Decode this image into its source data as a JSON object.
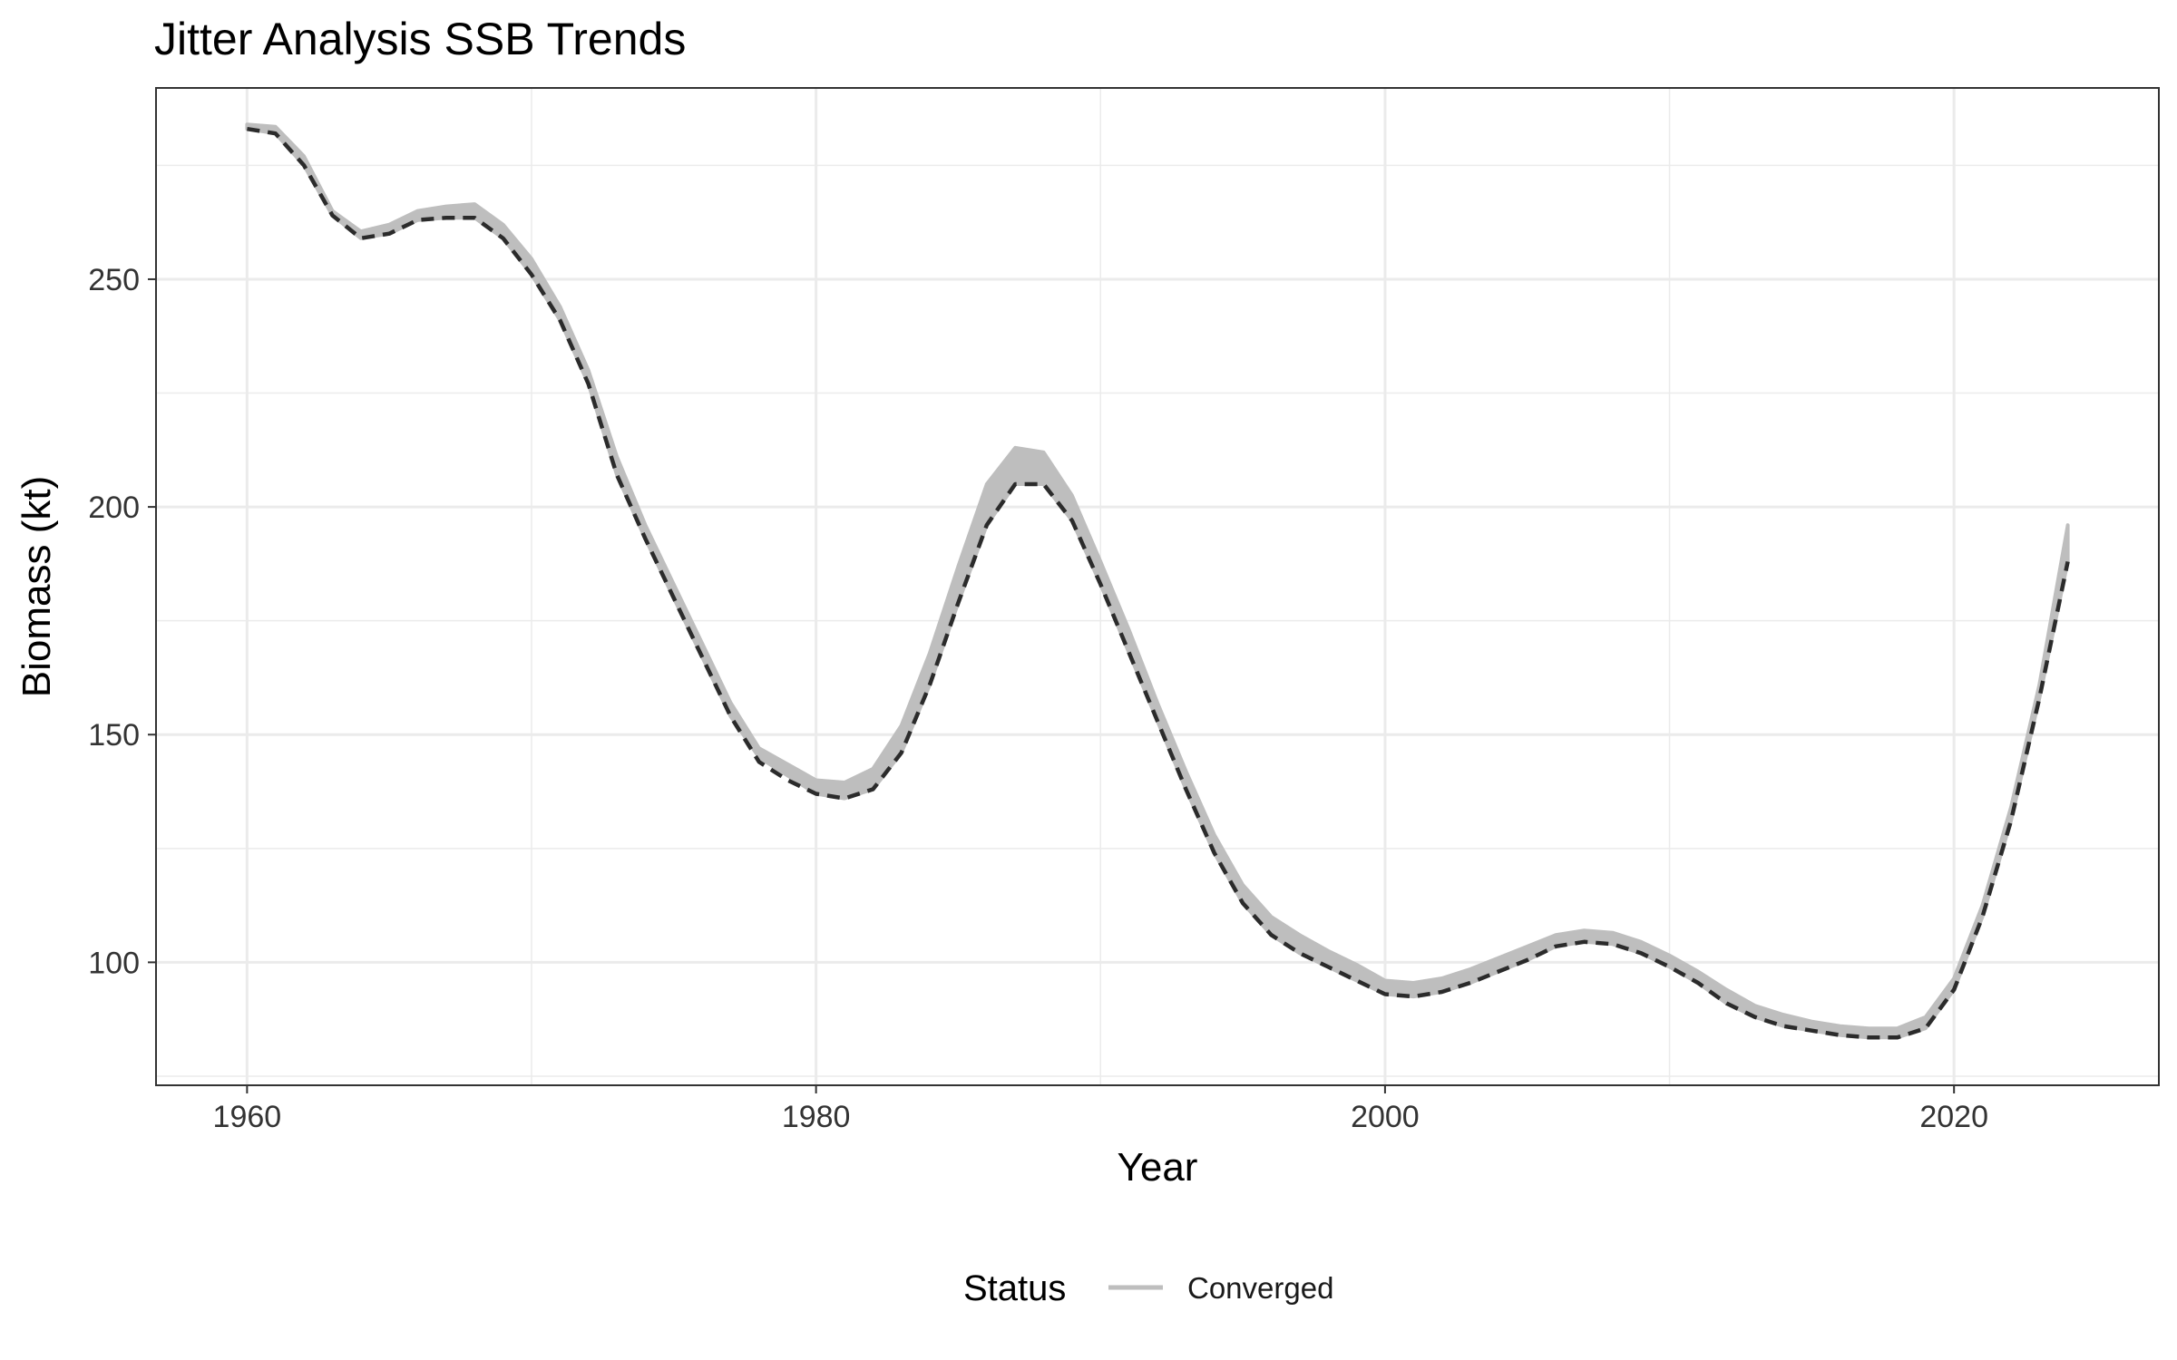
{
  "chart_data": {
    "type": "line",
    "title": "Jitter Analysis SSB Trends",
    "xlabel": "Year",
    "ylabel": "Biomass (kt)",
    "xlim": [
      1956.8,
      2027.2
    ],
    "ylim": [
      73,
      292
    ],
    "x_ticks": [
      1960,
      1980,
      2000,
      2020
    ],
    "y_ticks": [
      100,
      150,
      200,
      250
    ],
    "grid": true,
    "legend": {
      "title": "Status",
      "placement": "bottom",
      "entries": [
        "Converged"
      ]
    },
    "colors": {
      "band": "#bebebe",
      "line": "#2b2b2b",
      "grid": "#ebebeb",
      "panel_border": "#333333"
    },
    "x": [
      1960,
      1961,
      1962,
      1963,
      1964,
      1965,
      1966,
      1967,
      1968,
      1969,
      1970,
      1971,
      1972,
      1973,
      1974,
      1975,
      1976,
      1977,
      1978,
      1979,
      1980,
      1981,
      1982,
      1983,
      1984,
      1985,
      1986,
      1987,
      1988,
      1989,
      1990,
      1991,
      1992,
      1993,
      1994,
      1995,
      1996,
      1997,
      1998,
      1999,
      2000,
      2001,
      2002,
      2003,
      2004,
      2005,
      2006,
      2007,
      2008,
      2009,
      2010,
      2011,
      2012,
      2013,
      2014,
      2015,
      2016,
      2017,
      2018,
      2019,
      2020,
      2021,
      2022,
      2023,
      2024
    ],
    "series": [
      {
        "name": "Converged",
        "style": "band",
        "lower": [
          283,
          282,
          275,
          264,
          259,
          260,
          263,
          263.5,
          263.5,
          259,
          251,
          241,
          227,
          207,
          193,
          180,
          167,
          154,
          145,
          141,
          137,
          136,
          138,
          146,
          161,
          179,
          196,
          205,
          205,
          197,
          183,
          168,
          153,
          138,
          124,
          113,
          106,
          102,
          99,
          96,
          93,
          92.5,
          93.5,
          95.5,
          98,
          100.5,
          103.5,
          104.5,
          104,
          102,
          99,
          95.5,
          91,
          88,
          86,
          85,
          84,
          83.5,
          83.5,
          85.5,
          94,
          110,
          131,
          158,
          188
        ],
        "upper": [
          284,
          283.5,
          277,
          265,
          260.5,
          262,
          265,
          266,
          266.5,
          262,
          254.5,
          244,
          230,
          211,
          196,
          183,
          170,
          157,
          147,
          143.5,
          140,
          139.5,
          142.5,
          152,
          168,
          187,
          205,
          213,
          212,
          202.5,
          188,
          173,
          157,
          142,
          128,
          117,
          110,
          106,
          102.5,
          99.5,
          96,
          95.5,
          96.5,
          98.5,
          101,
          103.5,
          106,
          107,
          106.5,
          104.5,
          101.5,
          98,
          94,
          90.5,
          88.5,
          87,
          86,
          85.5,
          85.5,
          88,
          96.5,
          112.5,
          134,
          161,
          196
        ]
      },
      {
        "name": "",
        "style": "dashed",
        "values": [
          283,
          282,
          275,
          264,
          259,
          260,
          263,
          263.5,
          263.5,
          259,
          251,
          241,
          227,
          207,
          193,
          180,
          167,
          154,
          144,
          140,
          137,
          136,
          138,
          146,
          161,
          179,
          196,
          205,
          205,
          197,
          183,
          168,
          153,
          138,
          124,
          113,
          106,
          102,
          99,
          96,
          93,
          92.5,
          93.5,
          95.5,
          98,
          100.5,
          103.5,
          104.5,
          104,
          102,
          99,
          95.5,
          91,
          88,
          86,
          85,
          84,
          83.5,
          83.5,
          85.5,
          94,
          110,
          131,
          158,
          188
        ]
      }
    ]
  }
}
